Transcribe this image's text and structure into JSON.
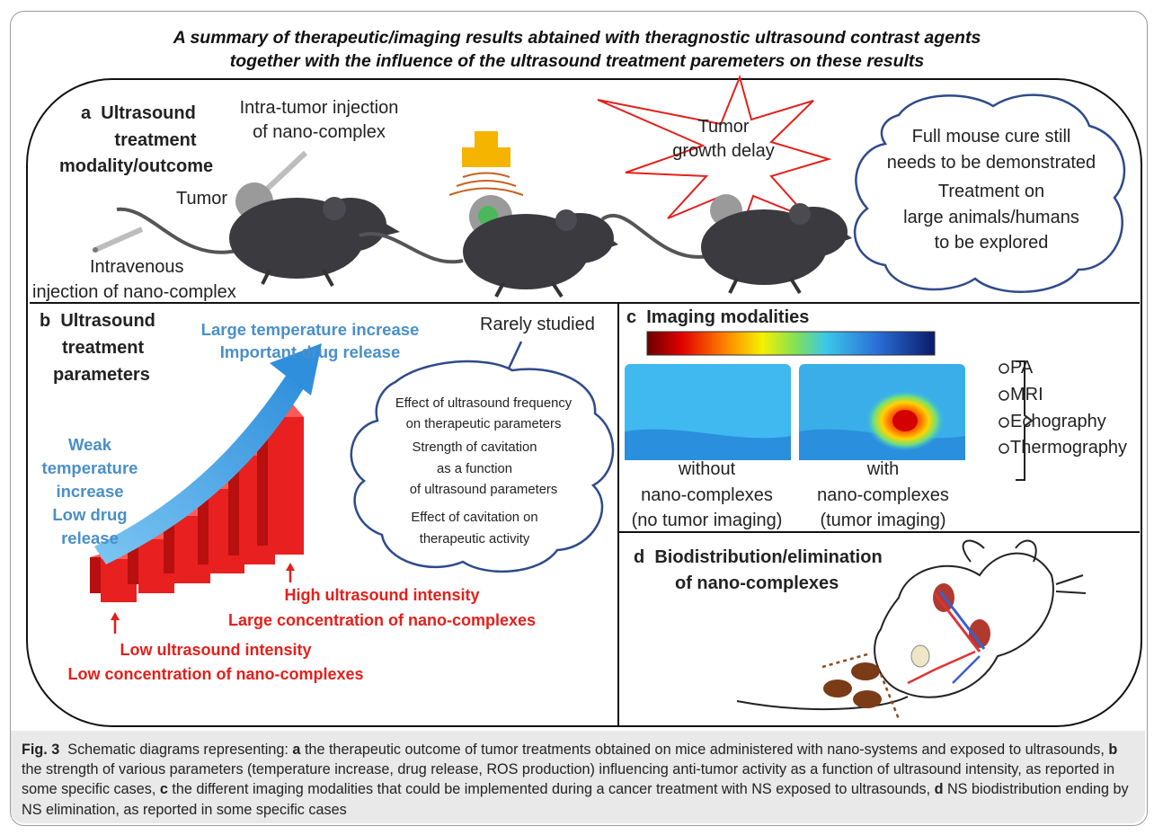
{
  "title": {
    "line1": "A summary of therapeutic/imaging results abtained with theragnostic ultrasound contrast agents",
    "line2": "together with the influence of the ultrasound treatment paremeters on these results"
  },
  "panel_a": {
    "heading_letter": "a",
    "heading_line1": "Ultrasound",
    "heading_line2": "treatment",
    "heading_line3": "modality/outcome",
    "intra_line1": "Intra-tumor injection",
    "intra_line2": "of nano-complex",
    "tumor": "Tumor",
    "iv_line1": "Intravenous",
    "iv_line2": "injection of nano-complex",
    "star_line1": "Tumor",
    "star_line2": "growth delay",
    "cloud_line1": "Full mouse cure still",
    "cloud_line2": "needs to be demonstrated",
    "cloud_line3": "Treatment on",
    "cloud_line4": "large animals/humans",
    "cloud_line5": "to be explored"
  },
  "panel_b": {
    "heading_letter": "b",
    "heading_line1": "Ultrasound",
    "heading_line2": "treatment",
    "heading_line3": "parameters",
    "large_line1": "Large temperature increase",
    "large_line2": "Important drug release",
    "weak_line1": "Weak",
    "weak_line2": "temperature",
    "weak_line3": "increase",
    "weak_line4": "Low drug",
    "weak_line5": "release",
    "rarely": "Rarely studied",
    "cloud_line1": "Effect of ultrasound frequency",
    "cloud_line2": "on therapeutic parameters",
    "cloud_line3": "Strength of cavitation",
    "cloud_line4": "as a function",
    "cloud_line5": "of ultrasound parameters",
    "cloud_line6": "Effect of cavitation on",
    "cloud_line7": "therapeutic activity",
    "high_line1": "High ultrasound intensity",
    "high_line2": "Large concentration of nano-complexes",
    "low_line1": "Low ultrasound intensity",
    "low_line2": "Low concentration of nano-complexes"
  },
  "panel_c": {
    "heading_letter": "c",
    "heading": "Imaging modalities",
    "without_line1": "without",
    "without_line2": "nano-complexes",
    "without_line3": "(no tumor imaging)",
    "with_line1": "with",
    "with_line2": "nano-complexes",
    "with_line3": "(tumor imaging)",
    "modalities": [
      "PA",
      "MRI",
      "Echography",
      "Thermography"
    ]
  },
  "panel_d": {
    "heading_letter": "d",
    "heading_line1": "Biodistribution/elimination",
    "heading_line2": "of nano-complexes"
  },
  "caption": {
    "fig": "Fig. 3",
    "intro": "Schematic diagrams representing:",
    "a_letter": "a",
    "a_text": "the therapeutic outcome of tumor treatments obtained on mice administered with nano-systems and exposed to ultrasounds,",
    "b_letter": "b",
    "b_text": "the strength of various parameters (temperature increase, drug release, ROS production) influencing anti-tumor activity as a function of ultrasound intensity, as reported in some specific cases,",
    "c_letter": "c",
    "c_text": "the different imaging modalities that could be implemented during a cancer treatment with NS exposed to ultrasounds,",
    "d_letter": "d",
    "d_text": "NS biodistribution ending by NS elimination, as reported in some specific cases"
  },
  "colors": {
    "cloud_stroke": "#2e4b8a",
    "star_stroke": "#e3201b",
    "arrow_blue": "#4aa3e0",
    "bar_red": "#e8201f",
    "mouse_gray": "#3a3a3f",
    "transducer": "#f5b400",
    "heat_spot": "#e01010"
  }
}
